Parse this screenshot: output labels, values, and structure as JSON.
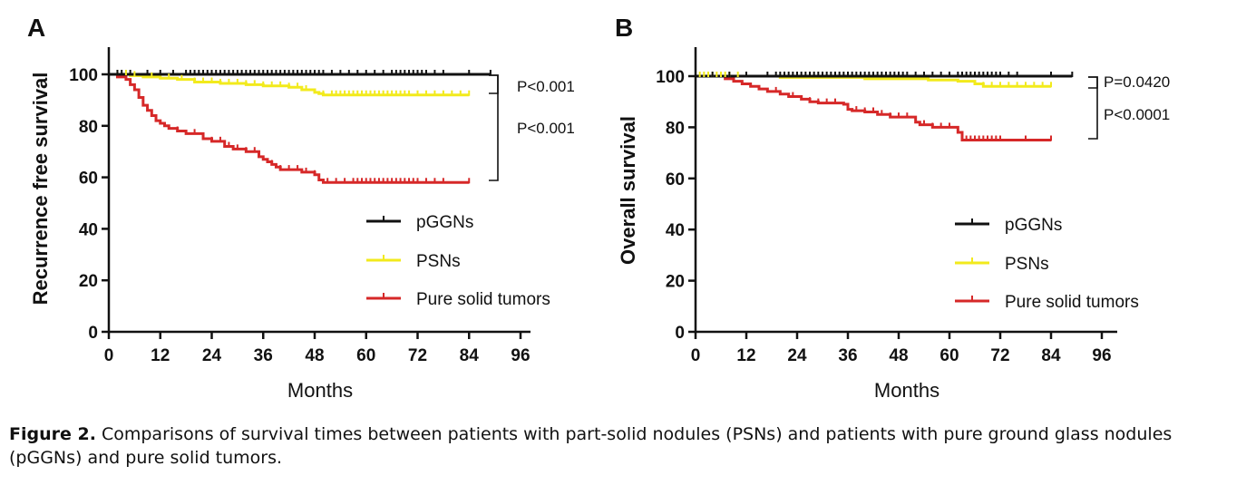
{
  "caption": {
    "label": "Figure 2.",
    "text": " Comparisons of survival times between patients with part-solid nodules (PSNs) and patients with pure ground glass nodules (pGGNs) and pure solid tumors."
  },
  "colors": {
    "pggn": "#111111",
    "psn": "#f2ea1c",
    "solid": "#d62828"
  },
  "chart_data": [
    {
      "type": "line",
      "panel": "A",
      "title": "",
      "xlabel": "Months",
      "ylabel": "Recurrence free survival",
      "xlim": [
        0,
        96
      ],
      "ylim": [
        0,
        100
      ],
      "xticks": [
        0,
        12,
        24,
        36,
        48,
        60,
        72,
        84,
        96
      ],
      "yticks": [
        0,
        20,
        40,
        60,
        80,
        100
      ],
      "legend": "bottom-right",
      "series": [
        {
          "name": "pGGNs",
          "color": "#111111",
          "x": [
            0,
            89
          ],
          "y": [
            100,
            100
          ],
          "censor": [
            2,
            3,
            5,
            9,
            12,
            15,
            18,
            19,
            20,
            21,
            22,
            23,
            24,
            25,
            26,
            27,
            28,
            29,
            30,
            31,
            32,
            33,
            34,
            35,
            36,
            37,
            38,
            39,
            40,
            41,
            42,
            43,
            44,
            45,
            46,
            47,
            48,
            49,
            50,
            52,
            54,
            56,
            58,
            60,
            62,
            64,
            66,
            67,
            68,
            69,
            70,
            71,
            72,
            73,
            74,
            76,
            78,
            84,
            89
          ]
        },
        {
          "name": "PSNs",
          "color": "#f2ea1c",
          "x": [
            0,
            5,
            8,
            12,
            16,
            20,
            26,
            32,
            36,
            42,
            45,
            48,
            49,
            50,
            84
          ],
          "y": [
            100,
            99.5,
            99,
            98.5,
            98,
            97,
            96.5,
            96,
            95.5,
            95,
            94,
            93,
            92.5,
            92,
            92
          ],
          "censor": [
            2,
            4,
            6,
            10,
            14,
            17,
            20,
            22,
            24,
            26,
            28,
            30,
            32,
            34,
            36,
            38,
            40,
            42,
            44,
            46,
            50,
            52,
            53,
            54,
            55,
            56,
            57,
            58,
            59,
            60,
            61,
            62,
            63,
            64,
            65,
            66,
            67,
            68,
            69,
            70,
            72,
            74,
            76,
            78,
            80,
            82,
            84
          ]
        },
        {
          "name": "Pure solid tumors",
          "color": "#d62828",
          "x": [
            0,
            2,
            4,
            5,
            6,
            7,
            8,
            9,
            10,
            11,
            12,
            13,
            14,
            16,
            18,
            22,
            24,
            27,
            29,
            32,
            35,
            36,
            37,
            38,
            39,
            40,
            41,
            45,
            48,
            49,
            50,
            84
          ],
          "y": [
            100,
            99,
            98,
            96,
            94,
            91,
            88,
            86,
            84,
            82,
            81,
            80,
            79,
            78,
            77,
            75,
            74,
            72,
            71,
            70,
            68,
            67,
            66,
            65,
            64,
            63,
            63,
            62,
            61,
            59,
            58,
            58
          ],
          "censor": [
            16,
            20,
            22,
            24,
            26,
            28,
            30,
            32,
            34,
            38,
            40,
            42,
            44,
            46,
            48,
            51,
            53,
            55,
            57,
            58,
            59,
            60,
            61,
            62,
            63,
            64,
            65,
            66,
            67,
            68,
            69,
            70,
            71,
            72,
            74,
            76,
            78,
            84
          ]
        }
      ],
      "annotations": [
        {
          "text": "P<0.001",
          "between": [
            "pGGNs",
            "PSNs"
          ]
        },
        {
          "text": "P<0.001",
          "between": [
            "pGGNs",
            "Pure solid tumors"
          ]
        }
      ]
    },
    {
      "type": "line",
      "panel": "B",
      "title": "",
      "xlabel": "Months",
      "ylabel": "Overall survival",
      "xlim": [
        0,
        96
      ],
      "ylim": [
        0,
        100
      ],
      "xticks": [
        0,
        12,
        24,
        36,
        48,
        60,
        72,
        84,
        96
      ],
      "yticks": [
        0,
        20,
        40,
        60,
        80,
        100
      ],
      "legend": "bottom-right",
      "series": [
        {
          "name": "pGGNs",
          "color": "#111111",
          "x": [
            0,
            89
          ],
          "y": [
            100,
            100
          ],
          "censor": [
            4,
            8,
            12,
            17,
            19,
            20,
            21,
            22,
            23,
            24,
            25,
            26,
            27,
            28,
            29,
            30,
            31,
            32,
            33,
            34,
            35,
            36,
            37,
            38,
            39,
            40,
            41,
            42,
            43,
            44,
            45,
            46,
            47,
            48,
            49,
            50,
            52,
            54,
            56,
            58,
            60,
            62,
            63,
            64,
            65,
            66,
            67,
            68,
            69,
            70,
            71,
            72,
            74,
            76,
            84,
            89
          ]
        },
        {
          "name": "PSNs",
          "color": "#f2ea1c",
          "x": [
            0,
            20,
            40,
            55,
            62,
            66,
            68,
            84
          ],
          "y": [
            100,
            99.5,
            99,
            98.5,
            98,
            97,
            96,
            96
          ],
          "censor": [
            1,
            2,
            3,
            4,
            5,
            6,
            7,
            8,
            10,
            12,
            68,
            70,
            72,
            74,
            76,
            78,
            80,
            82,
            84
          ]
        },
        {
          "name": "Pure solid tumors",
          "color": "#d62828",
          "x": [
            0,
            7,
            9,
            11,
            13,
            15,
            17,
            20,
            22,
            25,
            27,
            29,
            35,
            36,
            37,
            40,
            43,
            46,
            52,
            53,
            56,
            62,
            63,
            84
          ],
          "y": [
            100,
            99,
            98,
            97,
            96,
            95,
            94,
            93,
            92,
            91,
            90,
            89.5,
            89,
            87,
            86.5,
            86,
            85,
            84,
            82,
            81,
            80,
            78,
            75,
            75
          ],
          "censor": [
            19,
            23,
            27,
            29,
            31,
            33,
            38,
            40,
            42,
            44,
            46,
            48,
            50,
            54,
            56,
            58,
            60,
            64,
            65,
            66,
            67,
            68,
            69,
            70,
            71,
            72,
            78,
            84
          ]
        }
      ],
      "annotations": [
        {
          "text": "P=0.0420",
          "between": [
            "pGGNs",
            "PSNs"
          ]
        },
        {
          "text": "P<0.0001",
          "between": [
            "pGGNs",
            "Pure solid tumors"
          ]
        }
      ]
    }
  ]
}
